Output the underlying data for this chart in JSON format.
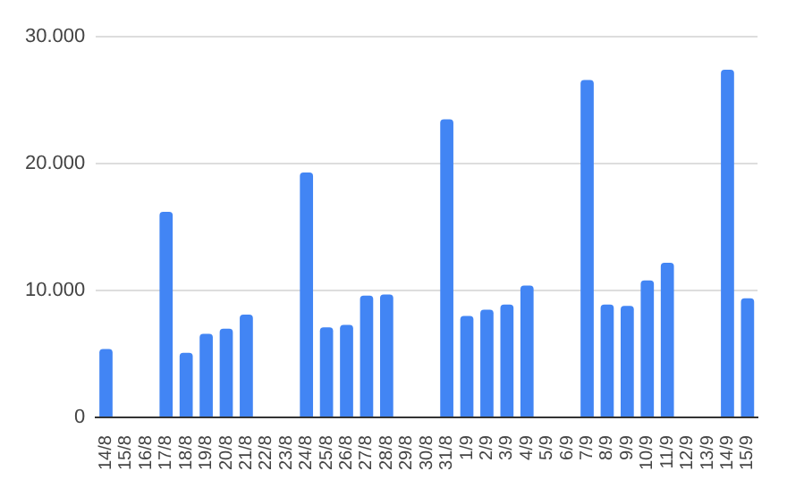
{
  "chart_data": {
    "type": "bar",
    "categories": [
      "14/8",
      "15/8",
      "16/8",
      "17/8",
      "18/8",
      "19/8",
      "20/8",
      "21/8",
      "22/8",
      "23/8",
      "24/8",
      "25/8",
      "26/8",
      "27/8",
      "28/8",
      "29/8",
      "30/8",
      "31/8",
      "1/9",
      "2/9",
      "3/9",
      "4/9",
      "5/9",
      "6/9",
      "7/9",
      "8/9",
      "9/9",
      "10/9",
      "11/9",
      "12/9",
      "13/9",
      "14/9",
      "15/9"
    ],
    "values": [
      5400,
      null,
      null,
      16200,
      5100,
      6600,
      7000,
      8100,
      null,
      null,
      19300,
      7100,
      7300,
      9600,
      9700,
      null,
      null,
      23500,
      8000,
      8500,
      8900,
      10400,
      null,
      null,
      26600,
      8900,
      8800,
      10800,
      12200,
      null,
      null,
      27400,
      9400
    ],
    "color": "#4285f4",
    "ylim": [
      0,
      30000
    ],
    "yticks": [
      {
        "value": 0,
        "label": "0"
      },
      {
        "value": 10000,
        "label": "10.000"
      },
      {
        "value": 20000,
        "label": "20.000"
      },
      {
        "value": 30000,
        "label": "30.000"
      }
    ],
    "grid": "y",
    "legend": false
  }
}
